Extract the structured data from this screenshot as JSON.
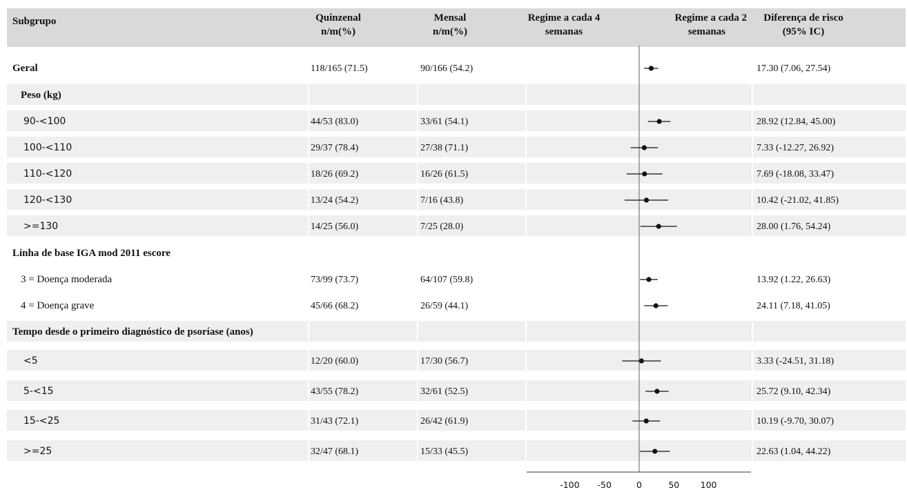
{
  "header": {
    "subgroup": "Subgrupo",
    "quinzenal": [
      "Quinzenal",
      "n/m(%)"
    ],
    "mensal": [
      "Mensal",
      "n/m(%)"
    ],
    "left_favor": [
      "Regime a cada 4",
      "semanas"
    ],
    "right_favor": [
      "Regime a cada 2",
      "semanas"
    ],
    "risk_diff": [
      "Diferença de risco",
      "(95% IC)"
    ]
  },
  "colors": {
    "header_bg": "#d9d9d9",
    "stripe_bg": "#efefef",
    "ink": "#111111",
    "reference_line": "#777777"
  },
  "rows": [
    {
      "kind": "data",
      "label": "Geral",
      "label_style": "bold-serif",
      "indent": 0,
      "quinzenal": "118/165 (71.5)",
      "mensal": "90/166 (54.2)",
      "ci_text": "17.30 (7.06, 27.54)",
      "shaded": false
    },
    {
      "kind": "group",
      "label": "Peso (kg)",
      "indent": 1,
      "shaded": true
    },
    {
      "kind": "data",
      "label": "90-<100",
      "label_style": "sans",
      "indent": 2,
      "quinzenal": "44/53 (83.0)",
      "mensal": "33/61 (54.1)",
      "ci_text": "28.92 (12.84, 45.00)",
      "shaded": true
    },
    {
      "kind": "data",
      "label": "100-<110",
      "label_style": "sans",
      "indent": 2,
      "quinzenal": "29/37 (78.4)",
      "mensal": "27/38 (71.1)",
      "ci_text": "7.33 (-12.27, 26.92)",
      "shaded": true
    },
    {
      "kind": "data",
      "label": "110-<120",
      "label_style": "sans",
      "indent": 2,
      "quinzenal": "18/26 (69.2)",
      "mensal": "16/26 (61.5)",
      "ci_text": "7.69 (-18.08, 33.47)",
      "shaded": true
    },
    {
      "kind": "data",
      "label": "120-<130",
      "label_style": "sans",
      "indent": 2,
      "quinzenal": "13/24 (54.2)",
      "mensal": "7/16 (43.8)",
      "ci_text": "10.42 (-21.02, 41.85)",
      "shaded": true
    },
    {
      "kind": "data",
      "label": ">=130",
      "label_style": "sans",
      "indent": 2,
      "quinzenal": "14/25 (56.0)",
      "mensal": "7/25 (28.0)",
      "ci_text": "28.00 (1.76, 54.24)",
      "shaded": true
    },
    {
      "kind": "group",
      "label": "Linha de base IGA mod 2011 escore",
      "indent": 0,
      "shaded": false
    },
    {
      "kind": "data",
      "label": "3 = Doença moderada",
      "label_style": "serif",
      "indent": 1,
      "quinzenal": "73/99 (73.7)",
      "mensal": "64/107 (59.8)",
      "ci_text": "13.92 (1.22, 26.63)",
      "shaded": false
    },
    {
      "kind": "data",
      "label": "4 = Doença grave",
      "label_style": "serif",
      "indent": 1,
      "quinzenal": "45/66 (68.2)",
      "mensal": "26/59 (44.1)",
      "ci_text": "24.11 (7.18, 41.05)",
      "shaded": false
    },
    {
      "kind": "group",
      "label": "Tempo desde o primeiro diagnóstico de psoríase (anos)",
      "indent": 0,
      "shaded": true
    },
    {
      "kind": "data",
      "label": "<5",
      "label_style": "sans",
      "indent": 2,
      "quinzenal": "12/20 (60.0)",
      "mensal": "17/30 (56.7)",
      "ci_text": "3.33 (-24.51, 31.18)",
      "shaded": true
    },
    {
      "kind": "data",
      "label": "5-<15",
      "label_style": "sans",
      "indent": 2,
      "quinzenal": "43/55 (78.2)",
      "mensal": "32/61 (52.5)",
      "ci_text": "25.72 (9.10, 42.34)",
      "shaded": true
    },
    {
      "kind": "data",
      "label": "15-<25",
      "label_style": "sans",
      "indent": 2,
      "quinzenal": "31/43 (72.1)",
      "mensal": "26/42 (61.9)",
      "ci_text": "10.19 (-9.70, 30.07)",
      "shaded": true
    },
    {
      "kind": "data",
      "label": ">=25",
      "label_style": "sans",
      "indent": 2,
      "quinzenal": "32/47 (68.1)",
      "mensal": "15/33 (45.5)",
      "ci_text": "22.63 (1.04, 44.22)",
      "shaded": true
    }
  ],
  "chart_data": {
    "type": "forest",
    "title": "",
    "xlabel": "",
    "ylabel": "",
    "reference_value": 0,
    "x_ticks": [
      -100,
      -50,
      0,
      50,
      100
    ],
    "xlim": [
      -100,
      100
    ],
    "grid": false,
    "legend": "none",
    "categories": [
      "Geral",
      "90-<100",
      "100-<110",
      "110-<120",
      "120-<130",
      ">=130",
      "3 = Doença moderada",
      "4 = Doença grave",
      "<5",
      "5-<15",
      "15-<25",
      ">=25"
    ],
    "series": [
      {
        "estimate": [
          17.3,
          28.92,
          7.33,
          7.69,
          10.42,
          28.0,
          13.92,
          24.11,
          3.33,
          25.72,
          10.19,
          22.63
        ],
        "ci_low": [
          7.06,
          12.84,
          -12.27,
          -18.08,
          -21.02,
          1.76,
          1.22,
          7.18,
          -24.51,
          9.1,
          -9.7,
          1.04
        ],
        "ci_high": [
          27.54,
          45.0,
          26.92,
          33.47,
          41.85,
          54.24,
          26.63,
          41.05,
          31.18,
          42.34,
          30.07,
          44.22
        ]
      }
    ]
  }
}
